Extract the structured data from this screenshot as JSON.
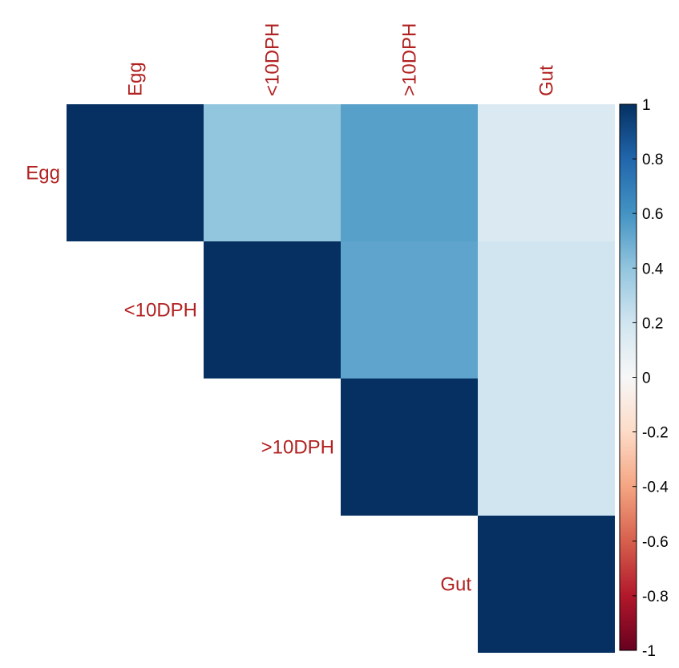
{
  "chart_data": {
    "type": "heatmap",
    "variables": [
      "Egg",
      "<10DPH",
      ">10DPH",
      "Gut"
    ],
    "layout": "upper-triangle",
    "cells": [
      {
        "row": "Egg",
        "col": "Egg",
        "value": 1.0
      },
      {
        "row": "Egg",
        "col": "<10DPH",
        "value": 0.4
      },
      {
        "row": "Egg",
        "col": ">10DPH",
        "value": 0.55
      },
      {
        "row": "Egg",
        "col": "Gut",
        "value": 0.15
      },
      {
        "row": "<10DPH",
        "col": "<10DPH",
        "value": 1.0
      },
      {
        "row": "<10DPH",
        "col": ">10DPH",
        "value": 0.53
      },
      {
        "row": "<10DPH",
        "col": "Gut",
        "value": 0.2
      },
      {
        "row": ">10DPH",
        "col": ">10DPH",
        "value": 1.0
      },
      {
        "row": ">10DPH",
        "col": "Gut",
        "value": 0.2
      },
      {
        "row": "Gut",
        "col": "Gut",
        "value": 1.0
      }
    ],
    "colorbar": {
      "range": [
        -1,
        1
      ],
      "ticks": [
        "1",
        "0.8",
        "0.6",
        "0.4",
        "0.2",
        "0",
        "-0.2",
        "-0.4",
        "-0.6",
        "-0.8",
        "-1"
      ],
      "placement": "right"
    },
    "colors": {
      "label": "#b22222",
      "max": "#053061",
      "mid": "#f7f7f7",
      "min": "#67001f"
    }
  }
}
